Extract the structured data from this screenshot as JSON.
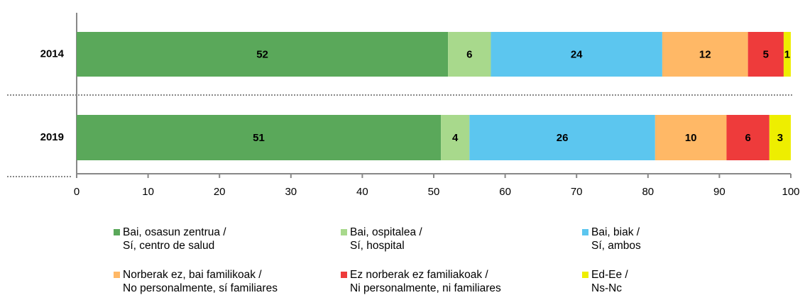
{
  "chart_data": {
    "type": "stacked_barh",
    "categories": [
      "2014",
      "2019"
    ],
    "series": [
      {
        "name": "Bai, osasun zentrua /\nSí, centro de salud",
        "color": "#5aa85a",
        "values": [
          52,
          51
        ]
      },
      {
        "name": "Bai, ospitalea /\nSí, hospital",
        "color": "#a8d98c",
        "values": [
          6,
          4
        ]
      },
      {
        "name": "Bai, biak /\nSí, ambos",
        "color": "#5cc6ef",
        "values": [
          24,
          26
        ]
      },
      {
        "name": "Norberak ez, bai familikoak /\nNo personalmente, sí familiares",
        "color": "#ffb866",
        "values": [
          12,
          10
        ]
      },
      {
        "name": "Ez norberak ez familiakoak /\nNi personalmente, ni familiares",
        "color": "#ee3b3b",
        "values": [
          5,
          6
        ]
      },
      {
        "name": "Ed-Ee /\nNs-Nc",
        "color": "#eeee00",
        "values": [
          1,
          3
        ]
      }
    ],
    "xlim": [
      0,
      100
    ],
    "xticks": [
      0,
      10,
      20,
      30,
      40,
      50,
      60,
      70,
      80,
      90,
      100
    ]
  }
}
